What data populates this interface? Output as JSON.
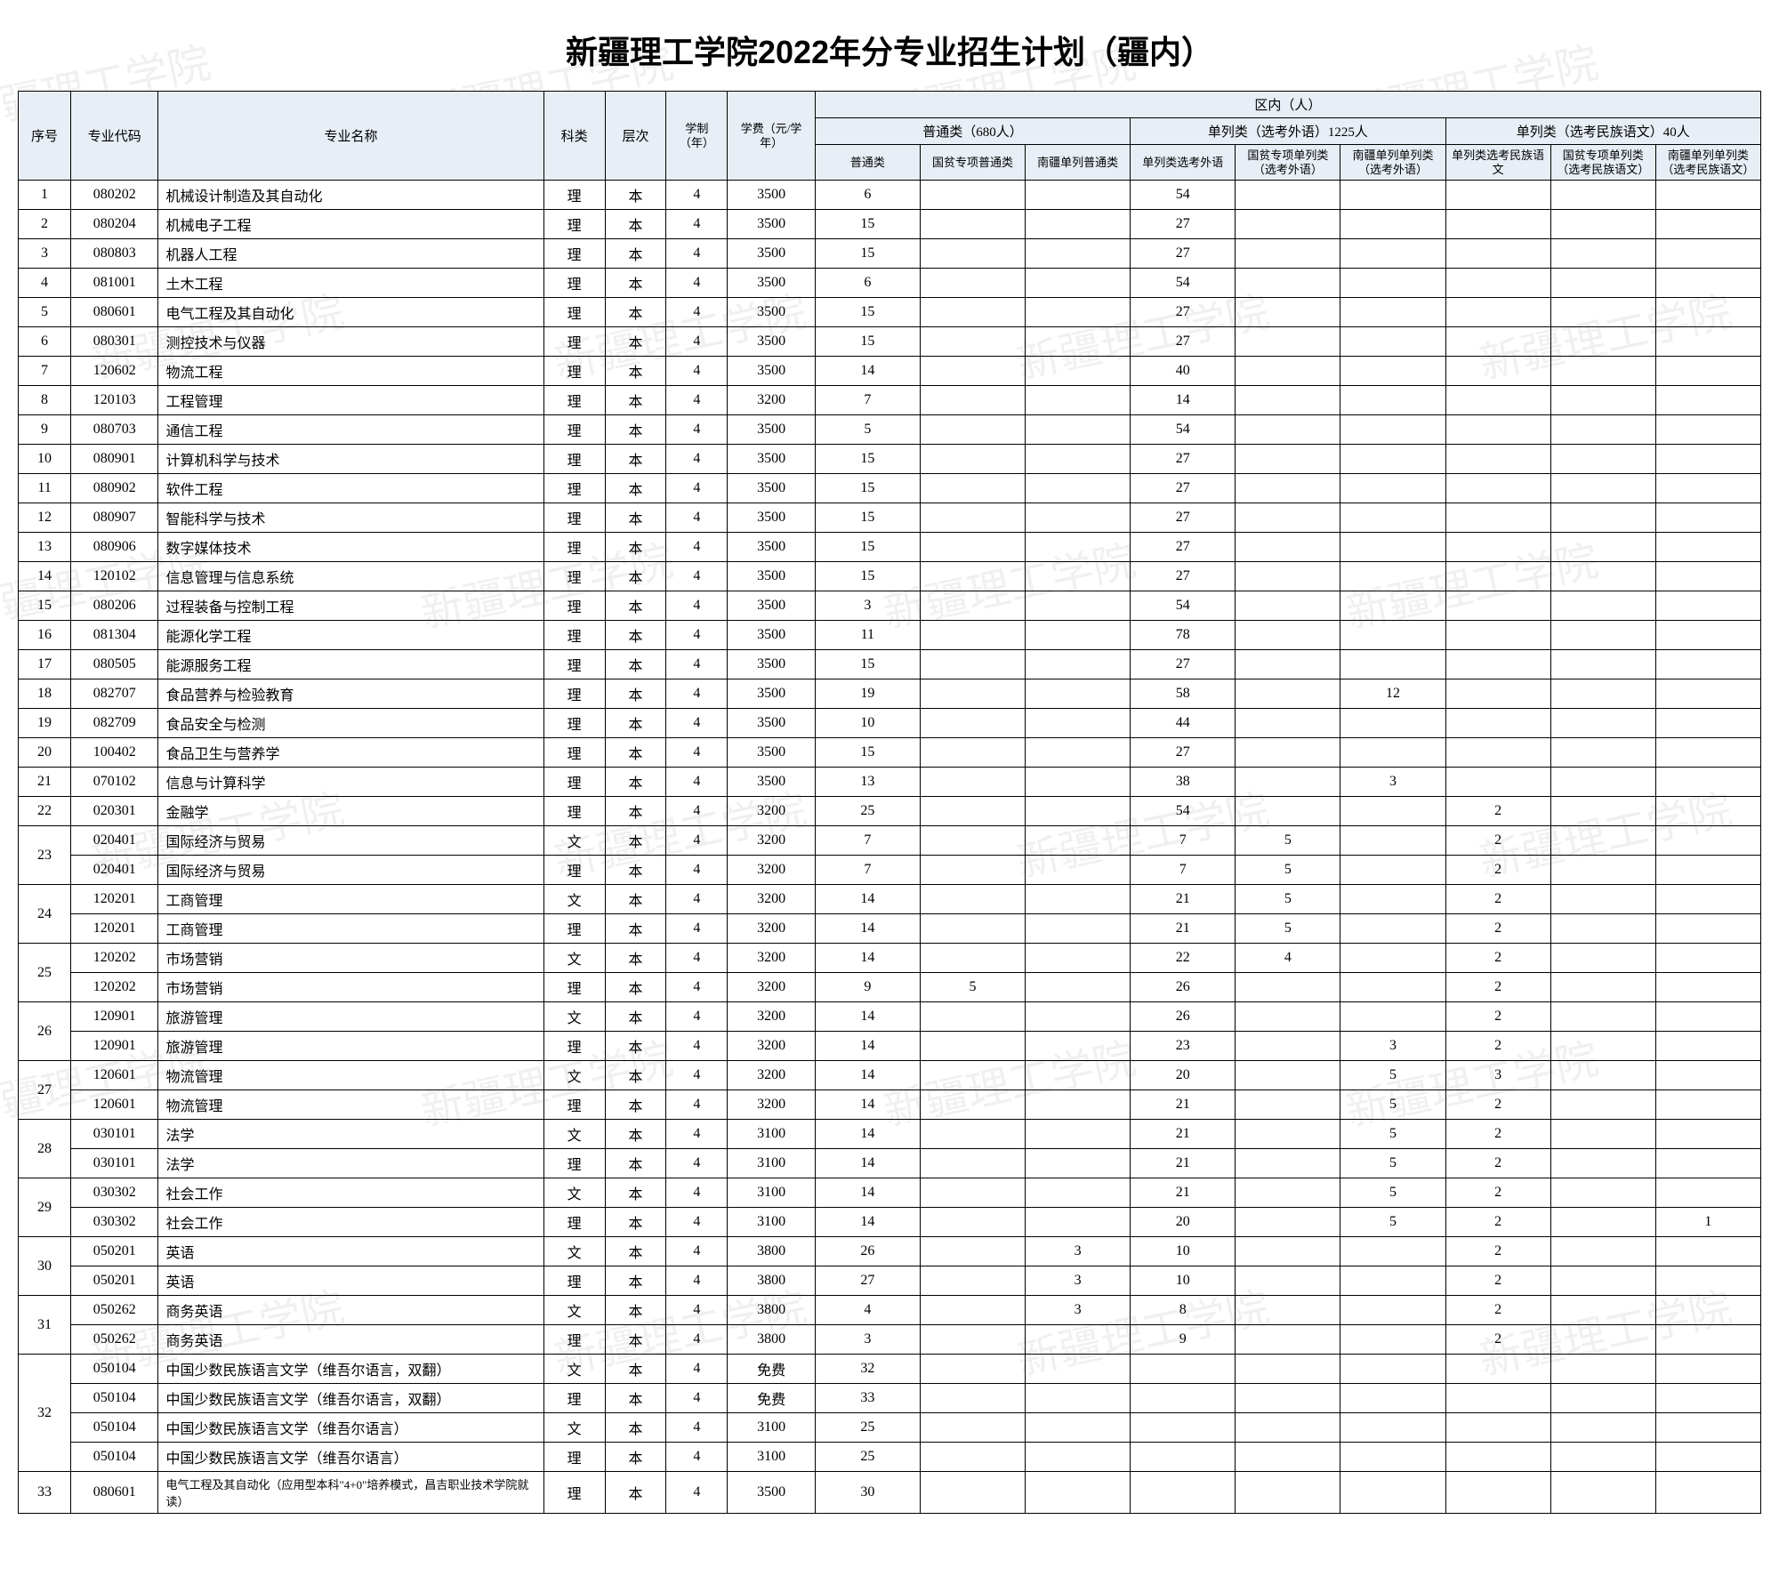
{
  "title": "新疆理工学院2022年分专业招生计划（疆内）",
  "watermark_text": "新疆理工学院",
  "headers": {
    "seq": "序号",
    "code": "专业代码",
    "name": "专业名称",
    "kelei": "科类",
    "level": "层次",
    "years": "学制（年）",
    "fee": "学费（元/学年）",
    "region": "区内（人）",
    "group_putong": "普通类（680人）",
    "group_danlie_wy": "单列类（选考外语）1225人",
    "group_danlie_mz": "单列类（选考民族语文）40人",
    "col_putong": "普通类",
    "col_guopin_putong": "国贫专项普通类",
    "col_nanjiang_putong": "南疆单列普通类",
    "col_danlie_wy": "单列类选考外语",
    "col_guopin_wy": "国贫专项单列类（选考外语）",
    "col_nanjiang_wy": "南疆单列单列类（选考外语）",
    "col_danlie_mz": "单列类选考民族语文",
    "col_guopin_mz": "国贫专项单列类（选考民族语文）",
    "col_nanjiang_mz": "南疆单列单列类（选考民族语文）"
  },
  "rows": [
    {
      "seq": "1",
      "span": 1,
      "code": "080202",
      "name": "机械设计制造及其自动化",
      "kelei": "理",
      "level": "本",
      "years": "4",
      "fee": "3500",
      "d": [
        "6",
        "",
        "",
        "54",
        "",
        "",
        "",
        "",
        ""
      ]
    },
    {
      "seq": "2",
      "span": 1,
      "code": "080204",
      "name": "机械电子工程",
      "kelei": "理",
      "level": "本",
      "years": "4",
      "fee": "3500",
      "d": [
        "15",
        "",
        "",
        "27",
        "",
        "",
        "",
        "",
        ""
      ]
    },
    {
      "seq": "3",
      "span": 1,
      "code": "080803",
      "name": "机器人工程",
      "kelei": "理",
      "level": "本",
      "years": "4",
      "fee": "3500",
      "d": [
        "15",
        "",
        "",
        "27",
        "",
        "",
        "",
        "",
        ""
      ]
    },
    {
      "seq": "4",
      "span": 1,
      "code": "081001",
      "name": "土木工程",
      "kelei": "理",
      "level": "本",
      "years": "4",
      "fee": "3500",
      "d": [
        "6",
        "",
        "",
        "54",
        "",
        "",
        "",
        "",
        ""
      ]
    },
    {
      "seq": "5",
      "span": 1,
      "code": "080601",
      "name": "电气工程及其自动化",
      "kelei": "理",
      "level": "本",
      "years": "4",
      "fee": "3500",
      "d": [
        "15",
        "",
        "",
        "27",
        "",
        "",
        "",
        "",
        ""
      ]
    },
    {
      "seq": "6",
      "span": 1,
      "code": "080301",
      "name": "测控技术与仪器",
      "kelei": "理",
      "level": "本",
      "years": "4",
      "fee": "3500",
      "d": [
        "15",
        "",
        "",
        "27",
        "",
        "",
        "",
        "",
        ""
      ]
    },
    {
      "seq": "7",
      "span": 1,
      "code": "120602",
      "name": "物流工程",
      "kelei": "理",
      "level": "本",
      "years": "4",
      "fee": "3500",
      "d": [
        "14",
        "",
        "",
        "40",
        "",
        "",
        "",
        "",
        ""
      ]
    },
    {
      "seq": "8",
      "span": 1,
      "code": "120103",
      "name": "工程管理",
      "kelei": "理",
      "level": "本",
      "years": "4",
      "fee": "3200",
      "d": [
        "7",
        "",
        "",
        "14",
        "",
        "",
        "",
        "",
        ""
      ]
    },
    {
      "seq": "9",
      "span": 1,
      "code": "080703",
      "name": "通信工程",
      "kelei": "理",
      "level": "本",
      "years": "4",
      "fee": "3500",
      "d": [
        "5",
        "",
        "",
        "54",
        "",
        "",
        "",
        "",
        ""
      ]
    },
    {
      "seq": "10",
      "span": 1,
      "code": "080901",
      "name": "计算机科学与技术",
      "kelei": "理",
      "level": "本",
      "years": "4",
      "fee": "3500",
      "d": [
        "15",
        "",
        "",
        "27",
        "",
        "",
        "",
        "",
        ""
      ]
    },
    {
      "seq": "11",
      "span": 1,
      "code": "080902",
      "name": "软件工程",
      "kelei": "理",
      "level": "本",
      "years": "4",
      "fee": "3500",
      "d": [
        "15",
        "",
        "",
        "27",
        "",
        "",
        "",
        "",
        ""
      ]
    },
    {
      "seq": "12",
      "span": 1,
      "code": "080907",
      "name": "智能科学与技术",
      "kelei": "理",
      "level": "本",
      "years": "4",
      "fee": "3500",
      "d": [
        "15",
        "",
        "",
        "27",
        "",
        "",
        "",
        "",
        ""
      ]
    },
    {
      "seq": "13",
      "span": 1,
      "code": "080906",
      "name": "数字媒体技术",
      "kelei": "理",
      "level": "本",
      "years": "4",
      "fee": "3500",
      "d": [
        "15",
        "",
        "",
        "27",
        "",
        "",
        "",
        "",
        ""
      ]
    },
    {
      "seq": "14",
      "span": 1,
      "code": "120102",
      "name": "信息管理与信息系统",
      "kelei": "理",
      "level": "本",
      "years": "4",
      "fee": "3500",
      "d": [
        "15",
        "",
        "",
        "27",
        "",
        "",
        "",
        "",
        ""
      ]
    },
    {
      "seq": "15",
      "span": 1,
      "code": "080206",
      "name": "过程装备与控制工程",
      "kelei": "理",
      "level": "本",
      "years": "4",
      "fee": "3500",
      "d": [
        "3",
        "",
        "",
        "54",
        "",
        "",
        "",
        "",
        ""
      ]
    },
    {
      "seq": "16",
      "span": 1,
      "code": "081304",
      "name": "能源化学工程",
      "kelei": "理",
      "level": "本",
      "years": "4",
      "fee": "3500",
      "d": [
        "11",
        "",
        "",
        "78",
        "",
        "",
        "",
        "",
        ""
      ]
    },
    {
      "seq": "17",
      "span": 1,
      "code": "080505",
      "name": "能源服务工程",
      "kelei": "理",
      "level": "本",
      "years": "4",
      "fee": "3500",
      "d": [
        "15",
        "",
        "",
        "27",
        "",
        "",
        "",
        "",
        ""
      ]
    },
    {
      "seq": "18",
      "span": 1,
      "code": "082707",
      "name": "食品营养与检验教育",
      "kelei": "理",
      "level": "本",
      "years": "4",
      "fee": "3500",
      "d": [
        "19",
        "",
        "",
        "58",
        "",
        "12",
        "",
        "",
        ""
      ]
    },
    {
      "seq": "19",
      "span": 1,
      "code": "082709",
      "name": "食品安全与检测",
      "kelei": "理",
      "level": "本",
      "years": "4",
      "fee": "3500",
      "d": [
        "10",
        "",
        "",
        "44",
        "",
        "",
        "",
        "",
        ""
      ]
    },
    {
      "seq": "20",
      "span": 1,
      "code": "100402",
      "name": "食品卫生与营养学",
      "kelei": "理",
      "level": "本",
      "years": "4",
      "fee": "3500",
      "d": [
        "15",
        "",
        "",
        "27",
        "",
        "",
        "",
        "",
        ""
      ]
    },
    {
      "seq": "21",
      "span": 1,
      "code": "070102",
      "name": "信息与计算科学",
      "kelei": "理",
      "level": "本",
      "years": "4",
      "fee": "3500",
      "d": [
        "13",
        "",
        "",
        "38",
        "",
        "3",
        "",
        "",
        ""
      ]
    },
    {
      "seq": "22",
      "span": 1,
      "code": "020301",
      "name": "金融学",
      "kelei": "理",
      "level": "本",
      "years": "4",
      "fee": "3200",
      "d": [
        "25",
        "",
        "",
        "54",
        "",
        "",
        "2",
        "",
        ""
      ]
    },
    {
      "seq": "23",
      "span": 2,
      "code": "020401",
      "name": "国际经济与贸易",
      "kelei": "文",
      "level": "本",
      "years": "4",
      "fee": "3200",
      "d": [
        "7",
        "",
        "",
        "7",
        "5",
        "",
        "2",
        "",
        ""
      ]
    },
    {
      "seq": "",
      "span": 0,
      "code": "020401",
      "name": "国际经济与贸易",
      "kelei": "理",
      "level": "本",
      "years": "4",
      "fee": "3200",
      "d": [
        "7",
        "",
        "",
        "7",
        "5",
        "",
        "2",
        "",
        ""
      ]
    },
    {
      "seq": "24",
      "span": 2,
      "code": "120201",
      "name": "工商管理",
      "kelei": "文",
      "level": "本",
      "years": "4",
      "fee": "3200",
      "d": [
        "14",
        "",
        "",
        "21",
        "5",
        "",
        "2",
        "",
        ""
      ]
    },
    {
      "seq": "",
      "span": 0,
      "code": "120201",
      "name": "工商管理",
      "kelei": "理",
      "level": "本",
      "years": "4",
      "fee": "3200",
      "d": [
        "14",
        "",
        "",
        "21",
        "5",
        "",
        "2",
        "",
        ""
      ]
    },
    {
      "seq": "25",
      "span": 2,
      "code": "120202",
      "name": "市场营销",
      "kelei": "文",
      "level": "本",
      "years": "4",
      "fee": "3200",
      "d": [
        "14",
        "",
        "",
        "22",
        "4",
        "",
        "2",
        "",
        ""
      ]
    },
    {
      "seq": "",
      "span": 0,
      "code": "120202",
      "name": "市场营销",
      "kelei": "理",
      "level": "本",
      "years": "4",
      "fee": "3200",
      "d": [
        "9",
        "5",
        "",
        "26",
        "",
        "",
        "2",
        "",
        ""
      ]
    },
    {
      "seq": "26",
      "span": 2,
      "code": "120901",
      "name": "旅游管理",
      "kelei": "文",
      "level": "本",
      "years": "4",
      "fee": "3200",
      "d": [
        "14",
        "",
        "",
        "26",
        "",
        "",
        "2",
        "",
        ""
      ]
    },
    {
      "seq": "",
      "span": 0,
      "code": "120901",
      "name": "旅游管理",
      "kelei": "理",
      "level": "本",
      "years": "4",
      "fee": "3200",
      "d": [
        "14",
        "",
        "",
        "23",
        "",
        "3",
        "2",
        "",
        ""
      ]
    },
    {
      "seq": "27",
      "span": 2,
      "code": "120601",
      "name": "物流管理",
      "kelei": "文",
      "level": "本",
      "years": "4",
      "fee": "3200",
      "d": [
        "14",
        "",
        "",
        "20",
        "",
        "5",
        "3",
        "",
        ""
      ]
    },
    {
      "seq": "",
      "span": 0,
      "code": "120601",
      "name": "物流管理",
      "kelei": "理",
      "level": "本",
      "years": "4",
      "fee": "3200",
      "d": [
        "14",
        "",
        "",
        "21",
        "",
        "5",
        "2",
        "",
        ""
      ]
    },
    {
      "seq": "28",
      "span": 2,
      "code": "030101",
      "name": "法学",
      "kelei": "文",
      "level": "本",
      "years": "4",
      "fee": "3100",
      "d": [
        "14",
        "",
        "",
        "21",
        "",
        "5",
        "2",
        "",
        ""
      ]
    },
    {
      "seq": "",
      "span": 0,
      "code": "030101",
      "name": "法学",
      "kelei": "理",
      "level": "本",
      "years": "4",
      "fee": "3100",
      "d": [
        "14",
        "",
        "",
        "21",
        "",
        "5",
        "2",
        "",
        ""
      ]
    },
    {
      "seq": "29",
      "span": 2,
      "code": "030302",
      "name": "社会工作",
      "kelei": "文",
      "level": "本",
      "years": "4",
      "fee": "3100",
      "d": [
        "14",
        "",
        "",
        "21",
        "",
        "5",
        "2",
        "",
        ""
      ]
    },
    {
      "seq": "",
      "span": 0,
      "code": "030302",
      "name": "社会工作",
      "kelei": "理",
      "level": "本",
      "years": "4",
      "fee": "3100",
      "d": [
        "14",
        "",
        "",
        "20",
        "",
        "5",
        "2",
        "",
        "1"
      ]
    },
    {
      "seq": "30",
      "span": 2,
      "code": "050201",
      "name": "英语",
      "kelei": "文",
      "level": "本",
      "years": "4",
      "fee": "3800",
      "d": [
        "26",
        "",
        "3",
        "10",
        "",
        "",
        "2",
        "",
        ""
      ]
    },
    {
      "seq": "",
      "span": 0,
      "code": "050201",
      "name": "英语",
      "kelei": "理",
      "level": "本",
      "years": "4",
      "fee": "3800",
      "d": [
        "27",
        "",
        "3",
        "10",
        "",
        "",
        "2",
        "",
        ""
      ]
    },
    {
      "seq": "31",
      "span": 2,
      "code": "050262",
      "name": "商务英语",
      "kelei": "文",
      "level": "本",
      "years": "4",
      "fee": "3800",
      "d": [
        "4",
        "",
        "3",
        "8",
        "",
        "",
        "2",
        "",
        ""
      ]
    },
    {
      "seq": "",
      "span": 0,
      "code": "050262",
      "name": "商务英语",
      "kelei": "理",
      "level": "本",
      "years": "4",
      "fee": "3800",
      "d": [
        "3",
        "",
        "",
        "9",
        "",
        "",
        "2",
        "",
        ""
      ]
    },
    {
      "seq": "32",
      "span": 4,
      "code": "050104",
      "name": "中国少数民族语言文学（维吾尔语言，双翻）",
      "kelei": "文",
      "level": "本",
      "years": "4",
      "fee": "免费",
      "d": [
        "32",
        "",
        "",
        "",
        "",
        "",
        "",
        "",
        ""
      ]
    },
    {
      "seq": "",
      "span": 0,
      "code": "050104",
      "name": "中国少数民族语言文学（维吾尔语言，双翻）",
      "kelei": "理",
      "level": "本",
      "years": "4",
      "fee": "免费",
      "d": [
        "33",
        "",
        "",
        "",
        "",
        "",
        "",
        "",
        ""
      ]
    },
    {
      "seq": "",
      "span": 0,
      "code": "050104",
      "name": "中国少数民族语言文学（维吾尔语言）",
      "kelei": "文",
      "level": "本",
      "years": "4",
      "fee": "3100",
      "d": [
        "25",
        "",
        "",
        "",
        "",
        "",
        "",
        "",
        ""
      ]
    },
    {
      "seq": "",
      "span": 0,
      "code": "050104",
      "name": "中国少数民族语言文学（维吾尔语言）",
      "kelei": "理",
      "level": "本",
      "years": "4",
      "fee": "3100",
      "d": [
        "25",
        "",
        "",
        "",
        "",
        "",
        "",
        "",
        ""
      ]
    },
    {
      "seq": "33",
      "span": 1,
      "code": "080601",
      "name": "电气工程及其自动化（应用型本科\"4+0\"培养模式，昌吉职业技术学院就读）",
      "kelei": "理",
      "level": "本",
      "years": "4",
      "fee": "3500",
      "d": [
        "30",
        "",
        "",
        "",
        "",
        "",
        "",
        "",
        ""
      ],
      "small": true
    }
  ]
}
